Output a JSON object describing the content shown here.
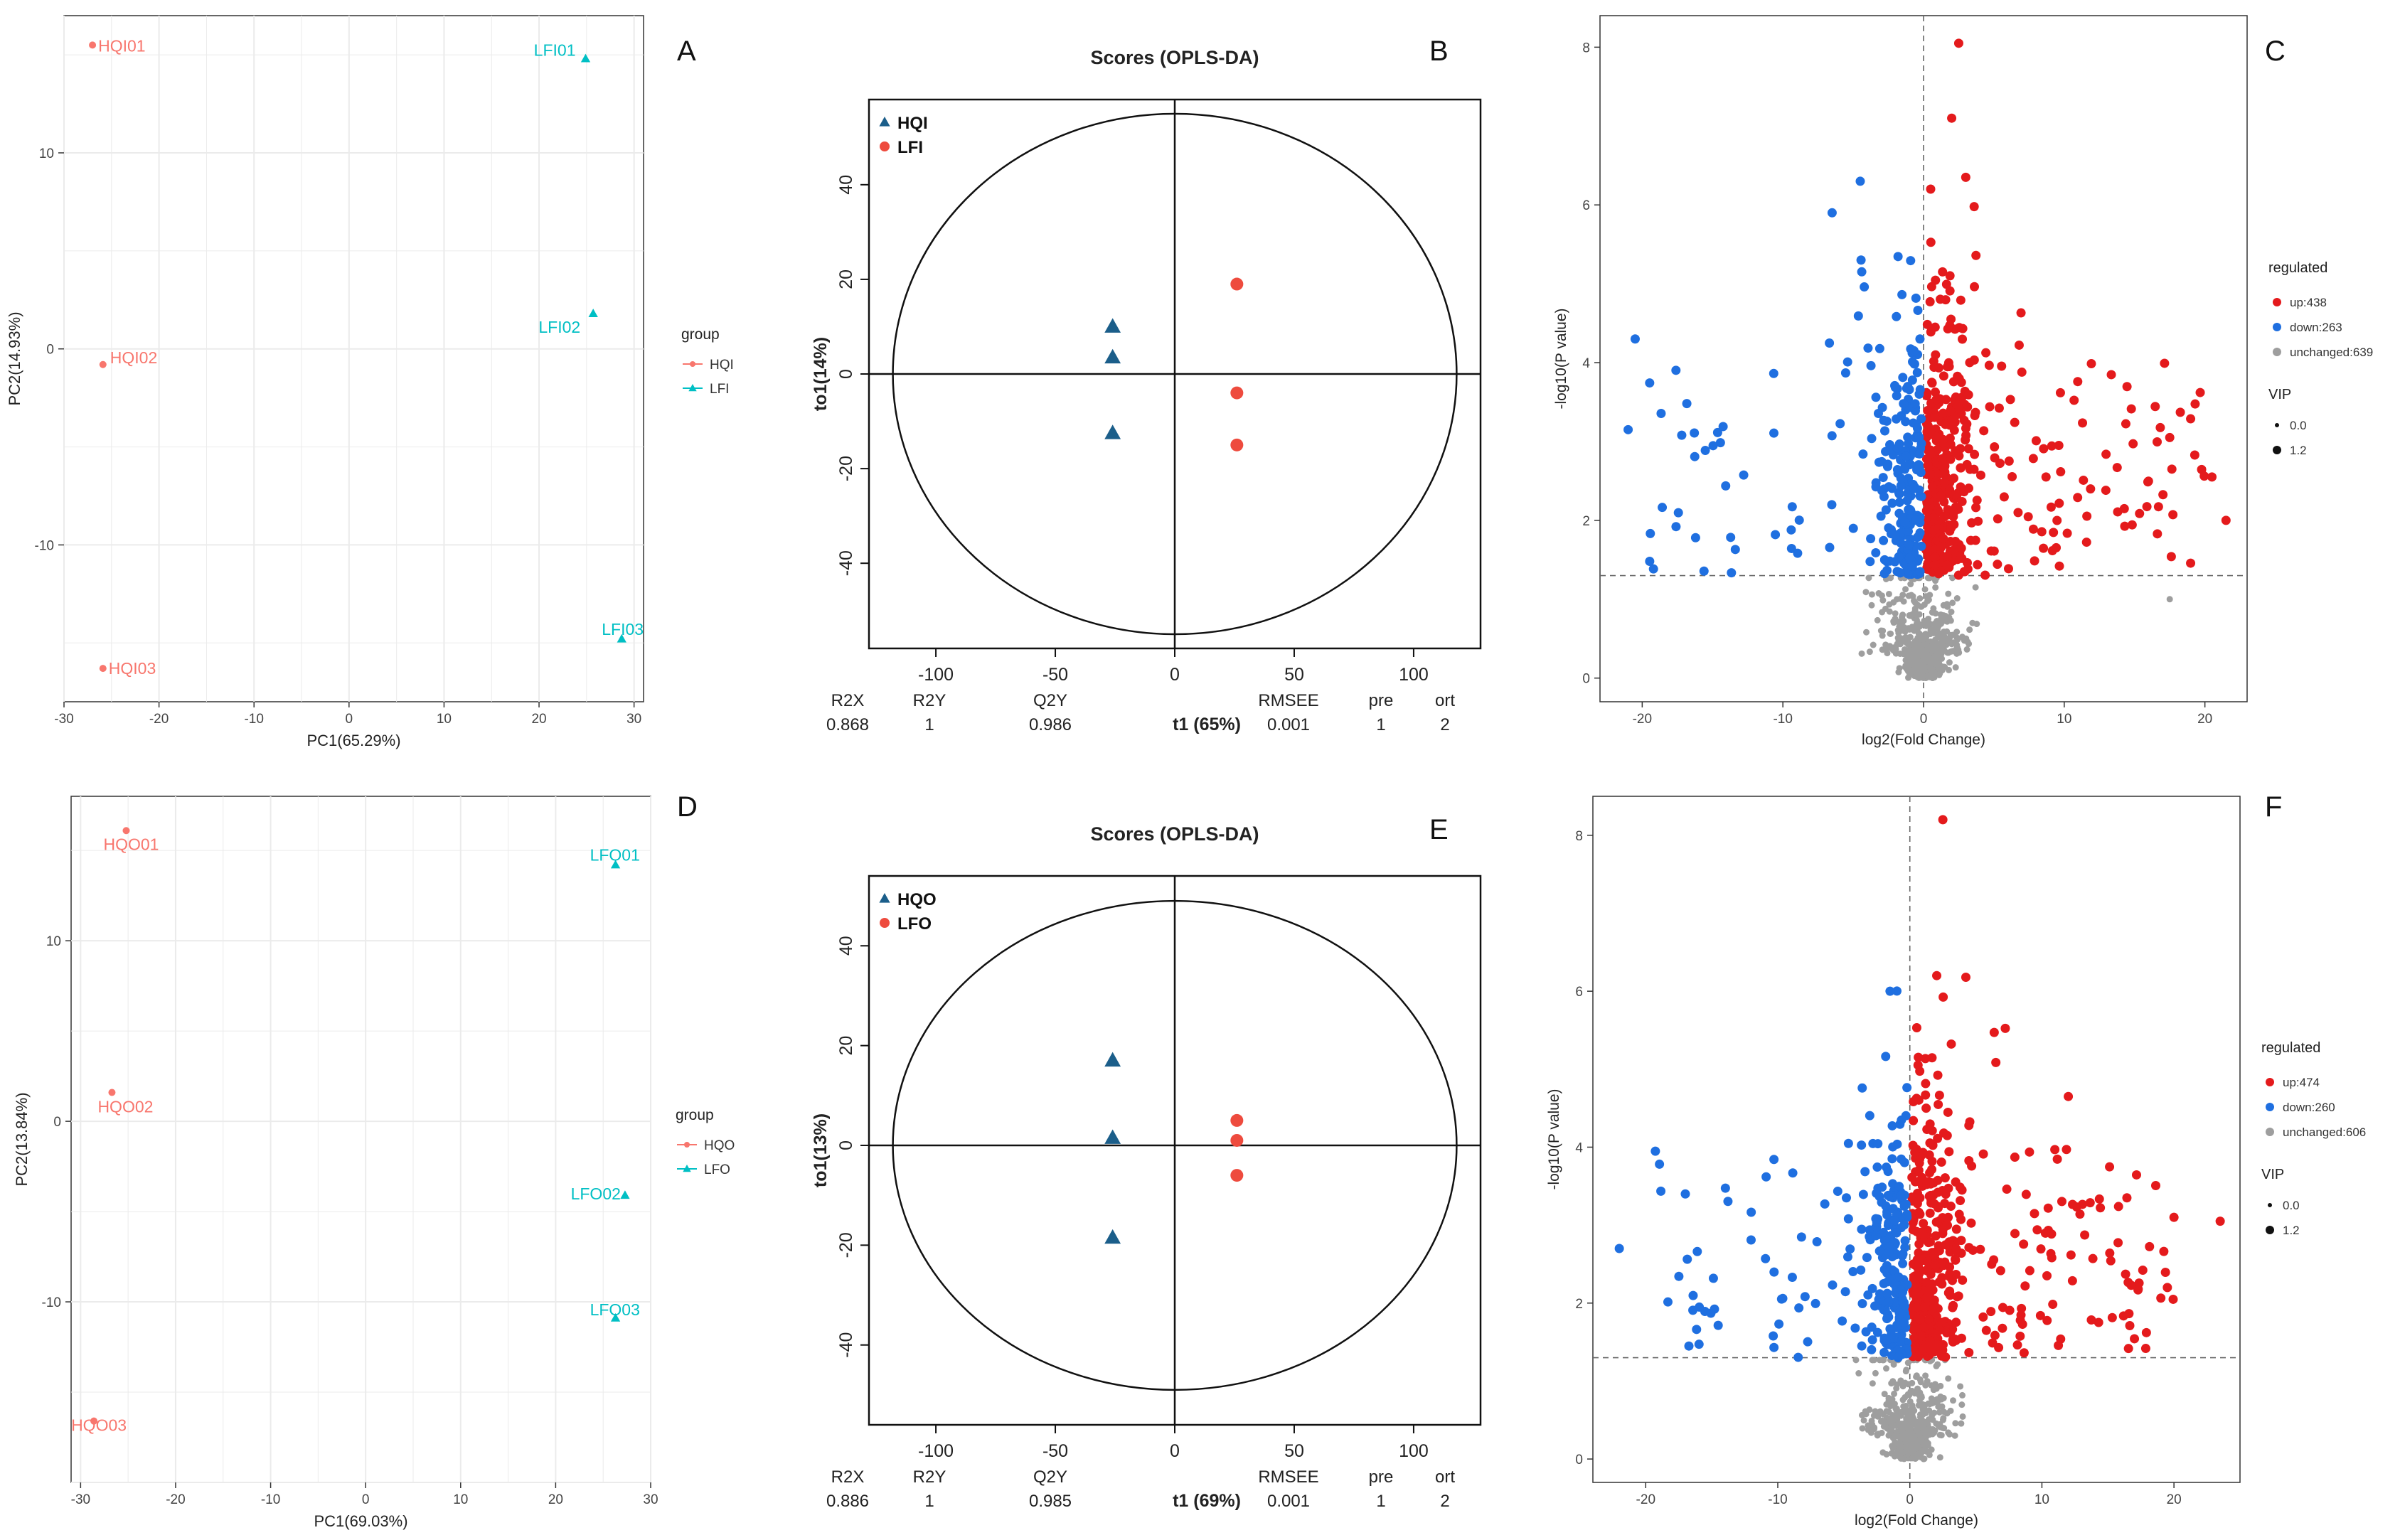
{
  "colors": {
    "hq_pca": "#F8766D",
    "lf_pca": "#00BFC4",
    "hq_opls": "#1B5E8A",
    "lf_opls": "#EE4B3E",
    "up": "#E41A1C",
    "down": "#1F6FE0",
    "unchanged": "#9E9E9E",
    "grid": "#EBEBEB",
    "axis": "#333333"
  },
  "chart_data": [
    {
      "panel_label": "A",
      "type": "scatter",
      "title": "",
      "xlabel": "PC1(65.29%)",
      "ylabel": "PC2(14.93%)",
      "xlim": [
        -30,
        31
      ],
      "ylim": [
        -18,
        17
      ],
      "xticks": [
        "-30",
        "-20",
        "-10",
        "0",
        "10",
        "20",
        "30"
      ],
      "yticks": [
        "-10",
        "0",
        "10"
      ],
      "legend_title": "group",
      "legend": [
        "HQI",
        "LFI"
      ],
      "series": [
        {
          "name": "HQI",
          "shape": "circle",
          "points": [
            {
              "label": "HQI01",
              "x": -27.0,
              "y": 15.5
            },
            {
              "label": "HQI02",
              "x": -25.9,
              "y": -0.8
            },
            {
              "label": "HQI03",
              "x": -25.9,
              "y": -16.3
            }
          ]
        },
        {
          "name": "LFI",
          "shape": "triangle",
          "points": [
            {
              "label": "LFI01",
              "x": 24.9,
              "y": 14.8
            },
            {
              "label": "LFI02",
              "x": 25.7,
              "y": 1.8
            },
            {
              "label": "LFI03",
              "x": 28.7,
              "y": -14.8
            }
          ]
        }
      ]
    },
    {
      "panel_label": "B",
      "type": "scatter",
      "title": "Scores (OPLS-DA)",
      "xlabel": "t1 (65%)",
      "ylabel": "to1(14%)",
      "xlim": [
        -128,
        128
      ],
      "ylim": [
        -58,
        58
      ],
      "xticks": [
        "-100",
        "-50",
        "0",
        "50",
        "100"
      ],
      "yticks": [
        "-40",
        "-20",
        "0",
        "20",
        "40"
      ],
      "ellipse": {
        "rx": 118,
        "ry": 55
      },
      "legend": [
        "HQI",
        "LFI"
      ],
      "series": [
        {
          "name": "HQI",
          "shape": "triangle",
          "points": [
            {
              "x": -26,
              "y": 10
            },
            {
              "x": -26,
              "y": 3.5
            },
            {
              "x": -26,
              "y": -12.5
            }
          ]
        },
        {
          "name": "LFI",
          "shape": "circle",
          "points": [
            {
              "x": 26,
              "y": 19
            },
            {
              "x": 26,
              "y": -4
            },
            {
              "x": 26,
              "y": -15
            }
          ]
        }
      ],
      "stats": {
        "headers": [
          "R2X",
          "R2Y",
          "Q2Y",
          "RMSEE",
          "pre",
          "ort"
        ],
        "values": [
          "0.868",
          "1",
          "0.986",
          "0.001",
          "1",
          "2"
        ]
      }
    },
    {
      "panel_label": "C",
      "type": "scatter",
      "title": "",
      "xlabel": "log2(Fold Change)",
      "ylabel": "-log10(P value)",
      "xlim": [
        -23,
        23
      ],
      "ylim": [
        -0.3,
        8.4
      ],
      "xticks": [
        "-20",
        "-10",
        "0",
        "10",
        "20"
      ],
      "yticks": [
        "0",
        "2",
        "4",
        "6",
        "8"
      ],
      "threshold_y": 1.3,
      "legend_title": "regulated",
      "legend": [
        "up:438",
        "down:263",
        "unchanged:639"
      ],
      "vip_title": "VIP",
      "vip_labels": [
        "0.0",
        "1.2"
      ],
      "counts": {
        "up": 438,
        "down": 263,
        "unchanged": 639
      },
      "notable_points": [
        {
          "group": "up",
          "x": 2.5,
          "y": 8.05
        },
        {
          "group": "up",
          "x": 2.0,
          "y": 7.1
        },
        {
          "group": "up",
          "x": 3.0,
          "y": 6.35
        },
        {
          "group": "up",
          "x": 21.5,
          "y": 2.0
        },
        {
          "group": "up",
          "x": 20.5,
          "y": 2.55
        },
        {
          "group": "up",
          "x": 17.5,
          "y": 3.05
        },
        {
          "group": "down",
          "x": -20.5,
          "y": 4.3
        },
        {
          "group": "down",
          "x": -4.5,
          "y": 6.3
        },
        {
          "group": "down",
          "x": -6.5,
          "y": 5.9
        },
        {
          "group": "down",
          "x": -21,
          "y": 3.15
        },
        {
          "group": "unchanged",
          "x": 17.5,
          "y": 1.0
        }
      ]
    },
    {
      "panel_label": "D",
      "type": "scatter",
      "title": "",
      "xlabel": "PC1(69.03%)",
      "ylabel": "PC2(13.84%)",
      "xlim": [
        -31,
        30
      ],
      "ylim": [
        -20,
        18
      ],
      "xticks": [
        "-30",
        "-20",
        "-10",
        "0",
        "10",
        "20",
        "30"
      ],
      "yticks": [
        "-10",
        "0",
        "10"
      ],
      "legend_title": "group",
      "legend": [
        "HQO",
        "LFO"
      ],
      "series": [
        {
          "name": "HQO",
          "shape": "circle",
          "points": [
            {
              "label": "HQO01",
              "x": -25.2,
              "y": 16.1
            },
            {
              "label": "HQO02",
              "x": -26.7,
              "y": 1.6
            },
            {
              "label": "HQO03",
              "x": -28.6,
              "y": -16.6
            }
          ]
        },
        {
          "name": "LFO",
          "shape": "triangle",
          "points": [
            {
              "label": "LFO01",
              "x": 26.3,
              "y": 14.2
            },
            {
              "label": "LFO02",
              "x": 27.3,
              "y": -4.1
            },
            {
              "label": "LFO03",
              "x": 26.3,
              "y": -10.9
            }
          ]
        }
      ]
    },
    {
      "panel_label": "E",
      "type": "scatter",
      "title": "Scores (OPLS-DA)",
      "xlabel": "t1 (69%)",
      "ylabel": "to1(13%)",
      "xlim": [
        -128,
        128
      ],
      "ylim": [
        -56,
        54
      ],
      "xticks": [
        "-100",
        "-50",
        "0",
        "50",
        "100"
      ],
      "yticks": [
        "-40",
        "-20",
        "0",
        "20",
        "40"
      ],
      "ellipse": {
        "rx": 118,
        "ry": 49
      },
      "legend": [
        "HQO",
        "LFO"
      ],
      "series": [
        {
          "name": "HQO",
          "shape": "triangle",
          "points": [
            {
              "x": -26,
              "y": 17
            },
            {
              "x": -26,
              "y": 1.5
            },
            {
              "x": -26,
              "y": -18.5
            }
          ]
        },
        {
          "name": "LFO",
          "shape": "circle",
          "points": [
            {
              "x": 26,
              "y": 5
            },
            {
              "x": 26,
              "y": 1
            },
            {
              "x": 26,
              "y": -6
            }
          ]
        }
      ],
      "stats": {
        "headers": [
          "R2X",
          "R2Y",
          "Q2Y",
          "RMSEE",
          "pre",
          "ort"
        ],
        "values": [
          "0.886",
          "1",
          "0.985",
          "0.001",
          "1",
          "2"
        ]
      }
    },
    {
      "panel_label": "F",
      "type": "scatter",
      "title": "",
      "xlabel": "log2(Fold Change)",
      "ylabel": "-log10(P value)",
      "xlim": [
        -24,
        25
      ],
      "ylim": [
        -0.3,
        8.5
      ],
      "xticks": [
        "-20",
        "-10",
        "0",
        "10",
        "20"
      ],
      "yticks": [
        "0",
        "2",
        "4",
        "6",
        "8"
      ],
      "threshold_y": 1.3,
      "legend_title": "regulated",
      "legend": [
        "up:474",
        "down:260",
        "unchanged:606"
      ],
      "vip_title": "VIP",
      "vip_labels": [
        "0.0",
        "1.2"
      ],
      "counts": {
        "up": 474,
        "down": 260,
        "unchanged": 606
      },
      "notable_points": [
        {
          "group": "up",
          "x": 2.5,
          "y": 8.2
        },
        {
          "group": "up",
          "x": 23.5,
          "y": 3.05
        },
        {
          "group": "up",
          "x": 20,
          "y": 3.1
        },
        {
          "group": "up",
          "x": 12,
          "y": 4.65
        },
        {
          "group": "up",
          "x": 19.5,
          "y": 2.2
        },
        {
          "group": "down",
          "x": -22,
          "y": 2.7
        },
        {
          "group": "down",
          "x": -1.5,
          "y": 6.0
        },
        {
          "group": "down",
          "x": -17,
          "y": 3.4
        }
      ]
    }
  ]
}
